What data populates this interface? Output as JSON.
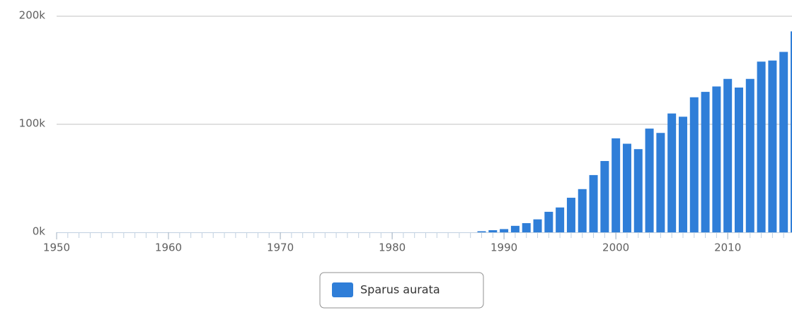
{
  "chart_data": {
    "type": "bar",
    "x": [
      1950,
      1951,
      1952,
      1953,
      1954,
      1955,
      1956,
      1957,
      1958,
      1959,
      1960,
      1961,
      1962,
      1963,
      1964,
      1965,
      1966,
      1967,
      1968,
      1969,
      1970,
      1971,
      1972,
      1973,
      1974,
      1975,
      1976,
      1977,
      1978,
      1979,
      1980,
      1981,
      1982,
      1983,
      1984,
      1985,
      1986,
      1987,
      1988,
      1989,
      1990,
      1991,
      1992,
      1993,
      1994,
      1995,
      1996,
      1997,
      1998,
      1999,
      2000,
      2001,
      2002,
      2003,
      2004,
      2005,
      2006,
      2007,
      2008,
      2009,
      2010,
      2011,
      2012,
      2013,
      2014,
      2015,
      2016
    ],
    "series": [
      {
        "name": "Sparus aurata",
        "color": "#2f7ed8",
        "values": [
          0,
          0,
          0,
          0,
          0,
          0,
          0,
          0,
          0,
          0,
          0,
          0,
          0,
          0,
          0,
          0,
          0,
          0,
          0,
          0,
          0,
          0,
          0,
          0,
          0,
          0,
          0,
          0,
          0,
          0,
          0,
          0,
          0,
          0,
          0,
          0,
          0,
          0,
          1000,
          2000,
          3000,
          6000,
          8500,
          12000,
          19000,
          23000,
          32000,
          40000,
          53000,
          66000,
          87000,
          82000,
          77000,
          96000,
          92000,
          110000,
          107000,
          125000,
          130000,
          135000,
          142000,
          134000,
          142000,
          158000,
          159000,
          167000,
          186000
        ]
      }
    ],
    "xlim": [
      1950,
      2016
    ],
    "xticks": [
      1950,
      1960,
      1970,
      1980,
      1990,
      2000,
      2010
    ],
    "ylim": [
      0,
      200000
    ],
    "yticks": [
      {
        "value": 0,
        "label": "0k"
      },
      {
        "value": 100000,
        "label": "100k"
      },
      {
        "value": 200000,
        "label": "200k"
      }
    ],
    "grid": true
  }
}
